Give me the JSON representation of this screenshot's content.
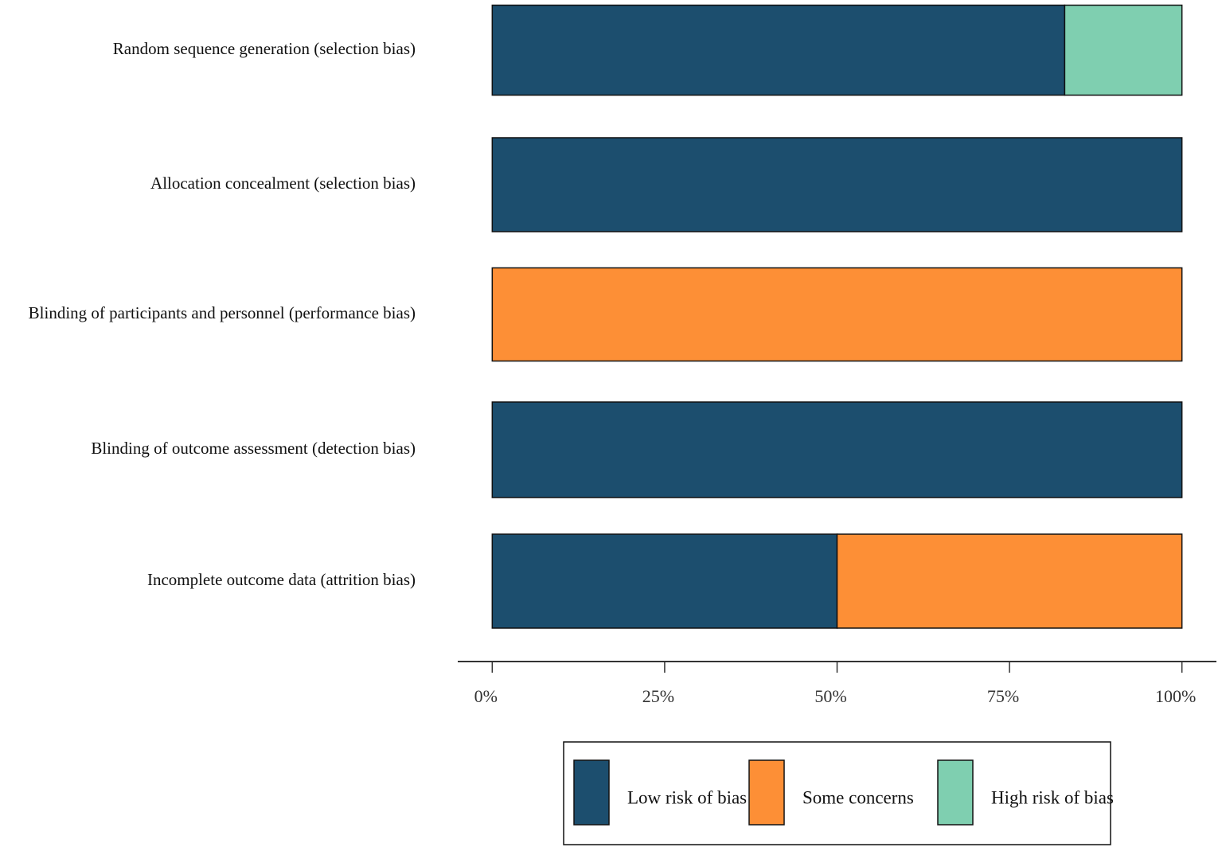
{
  "chart_data": {
    "type": "stacked-barh",
    "categories": [
      "Random sequence generation (selection bias)",
      "Allocation concealment (selection bias)",
      "Blinding of participants and personnel (performance bias)",
      "Blinding of outcome assessment (detection bias)",
      "Incomplete outcome data (attrition bias)"
    ],
    "series": [
      {
        "name": "Low risk of bias",
        "color": "#1c4e6e",
        "values": [
          83,
          100,
          0,
          100,
          50
        ]
      },
      {
        "name": "Some concerns",
        "color": "#fd8f36",
        "values": [
          0,
          0,
          100,
          0,
          50
        ]
      },
      {
        "name": "High risk of bias",
        "color": "#7fcfb0",
        "values": [
          17,
          0,
          0,
          0,
          0
        ]
      }
    ],
    "xlim": [
      -5,
      105
    ],
    "xticks": [
      {
        "value": 0,
        "label": "0%"
      },
      {
        "value": 25,
        "label": "25%"
      },
      {
        "value": 50,
        "label": "50%"
      },
      {
        "value": 75,
        "label": "75%"
      },
      {
        "value": 100,
        "label": "100%"
      }
    ],
    "legend": "bottom"
  }
}
